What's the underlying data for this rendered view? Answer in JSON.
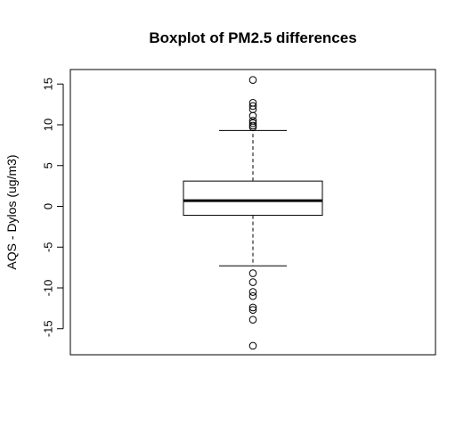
{
  "chart_data": {
    "type": "boxplot",
    "title": "Boxplot of PM2.5 differences",
    "xlabel": "",
    "ylabel": "AQS - Dylos (ug/m3)",
    "ylim": [
      -18,
      17
    ],
    "yticks": [
      -15,
      -10,
      -5,
      0,
      5,
      10,
      15
    ],
    "ytick_labels": [
      "-15",
      "-10",
      "-5",
      "0",
      "5",
      "10",
      "15"
    ],
    "box": {
      "whisker_low": -7.3,
      "q1": -1.1,
      "median": 0.7,
      "q3": 3.1,
      "whisker_high": 9.3
    },
    "outliers": [
      15.5,
      12.7,
      12.3,
      11.9,
      11.1,
      10.5,
      10.2,
      9.9,
      9.7,
      -8.2,
      -9.3,
      -10.5,
      -11.0,
      -12.4,
      -12.7,
      -13.9,
      -17.1
    ]
  }
}
